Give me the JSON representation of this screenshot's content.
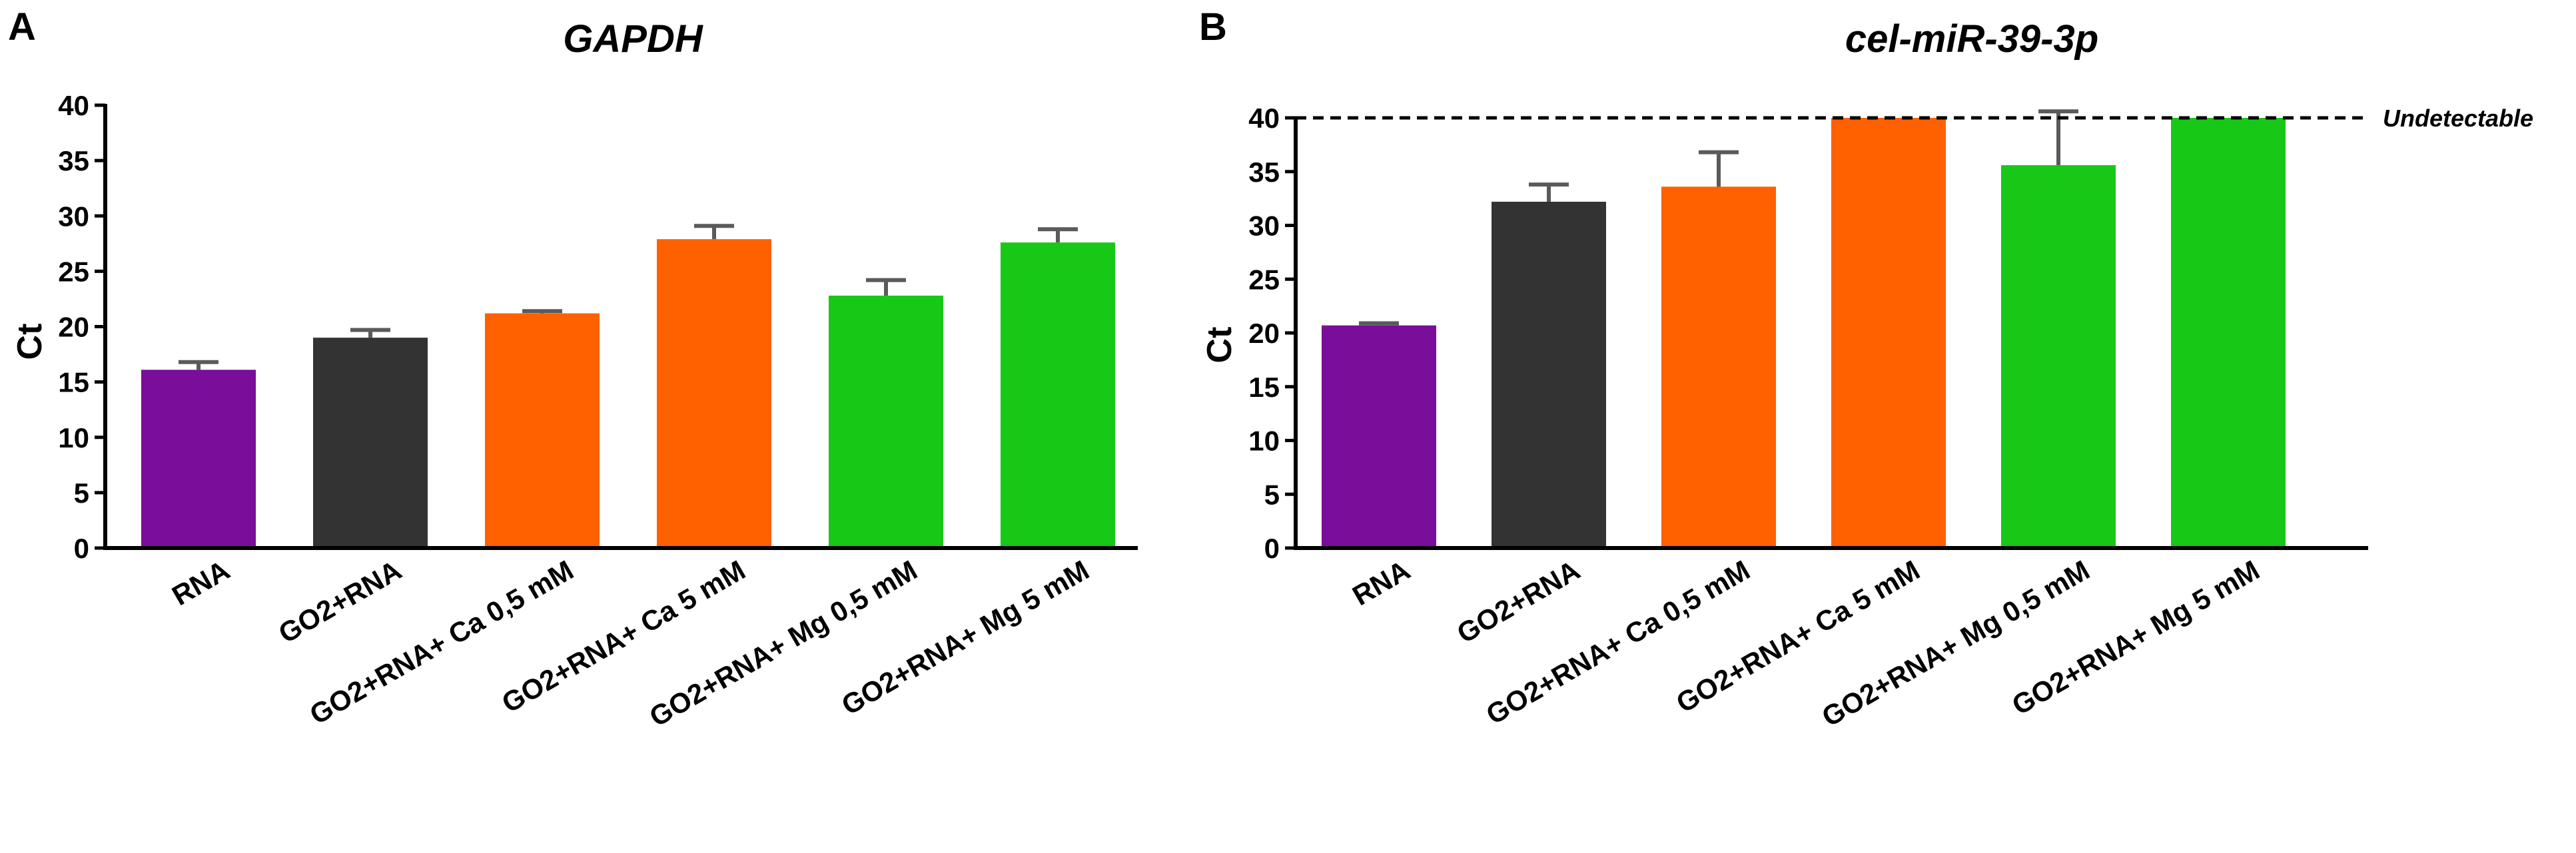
{
  "chart_data": [
    {
      "type": "bar",
      "panel": "A",
      "title": "GAPDH",
      "xlabel": "",
      "ylabel": "Ct",
      "ylim": [
        0,
        40
      ],
      "yticks": [
        0,
        5,
        10,
        15,
        20,
        25,
        30,
        35,
        40
      ],
      "categories": [
        "RNA",
        "GO2+RNA",
        "GO2+RNA+ Ca 0,5 mM",
        "GO2+RNA+ Ca 5 mM",
        "GO2+RNA+ Mg 0,5 mM",
        "GO2+RNA+ Mg 5 mM"
      ],
      "values": [
        16.1,
        19.0,
        21.2,
        27.9,
        22.8,
        27.6
      ],
      "errors": [
        0.7,
        0.7,
        0.2,
        1.2,
        1.4,
        1.2
      ],
      "colors": [
        "#7a0d99",
        "#333333",
        "#ff6000",
        "#ff6000",
        "#17c817",
        "#17c817"
      ],
      "grid": false,
      "legend": "none"
    },
    {
      "type": "bar",
      "panel": "B",
      "title": "cel-miR-39-3p",
      "xlabel": "",
      "ylabel": "Ct",
      "ylim": [
        0,
        40
      ],
      "yticks": [
        0,
        5,
        10,
        15,
        20,
        25,
        30,
        35,
        40
      ],
      "categories": [
        "RNA",
        "GO2+RNA",
        "GO2+RNA+ Ca 0,5 mM",
        "GO2+RNA+ Ca 5 mM",
        "GO2+RNA+ Mg 0,5 mM",
        "GO2+RNA+ Mg 5 mM"
      ],
      "values": [
        20.7,
        32.2,
        33.6,
        40,
        35.6,
        40
      ],
      "errors": [
        0.2,
        1.6,
        3.2,
        0,
        5.0,
        0
      ],
      "colors": [
        "#7a0d99",
        "#333333",
        "#ff6000",
        "#ff6000",
        "#17c817",
        "#17c817"
      ],
      "reference_line": {
        "value": 40,
        "label": "Undetectable",
        "style": "dashed"
      },
      "grid": false,
      "legend": "none"
    }
  ]
}
